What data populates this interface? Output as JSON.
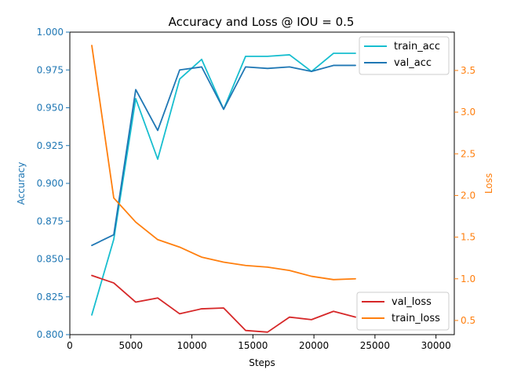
{
  "chart_data": {
    "type": "line",
    "title": "Accuracy and Loss @ IOU = 0.5",
    "xlabel": "Steps",
    "ylabel_left": "Accuracy",
    "ylabel_right": "Loss",
    "xlim": [
      0,
      31500
    ],
    "ylim_left": [
      0.8,
      1.0
    ],
    "ylim_right": [
      0.33,
      3.96
    ],
    "x_ticks": [
      0,
      5000,
      10000,
      15000,
      20000,
      25000,
      30000
    ],
    "y_left_ticks": [
      0.8,
      0.825,
      0.85,
      0.875,
      0.9,
      0.925,
      0.95,
      0.975,
      1.0
    ],
    "y_left_tick_labels": [
      "0.800",
      "0.825",
      "0.850",
      "0.875",
      "0.900",
      "0.925",
      "0.950",
      "0.975",
      "1.000"
    ],
    "y_right_ticks": [
      0.5,
      1.0,
      1.5,
      2.0,
      2.5,
      3.0,
      3.5
    ],
    "y_right_tick_labels": [
      "0.5",
      "1.0",
      "1.5",
      "2.0",
      "2.5",
      "3.0",
      "3.5"
    ],
    "grid": false,
    "colors": {
      "left_axis": "#1f77b4",
      "right_axis": "#ff7f0e",
      "train_acc": "#17becf",
      "val_acc": "#1f77b4",
      "val_loss": "#d62728",
      "train_loss": "#ff7f0e"
    },
    "legend_accuracy_position": "top-right",
    "legend_loss_position": "bottom-right",
    "x": [
      1800,
      3600,
      5400,
      7200,
      9000,
      10800,
      12600,
      14400,
      16200,
      18000,
      19800,
      21600,
      23400
    ],
    "series": [
      {
        "name": "train_acc",
        "axis": "left",
        "values": [
          0.813,
          0.863,
          0.956,
          0.916,
          0.969,
          0.982,
          0.949,
          0.984,
          0.984,
          0.985,
          0.974,
          0.986,
          0.986
        ]
      },
      {
        "name": "val_acc",
        "axis": "left",
        "values": [
          0.859,
          0.866,
          0.962,
          0.935,
          0.975,
          0.977,
          0.949,
          0.977,
          0.976,
          0.977,
          0.974,
          0.978,
          0.978
        ]
      },
      {
        "name": "val_loss",
        "axis": "right",
        "values": [
          1.04,
          0.95,
          0.72,
          0.77,
          0.58,
          0.64,
          0.65,
          0.38,
          0.36,
          0.54,
          0.51,
          0.61,
          0.54
        ]
      },
      {
        "name": "train_loss",
        "axis": "right",
        "values": [
          3.8,
          1.97,
          1.68,
          1.47,
          1.38,
          1.26,
          1.2,
          1.16,
          1.14,
          1.1,
          1.03,
          0.99,
          1.0
        ]
      }
    ]
  }
}
